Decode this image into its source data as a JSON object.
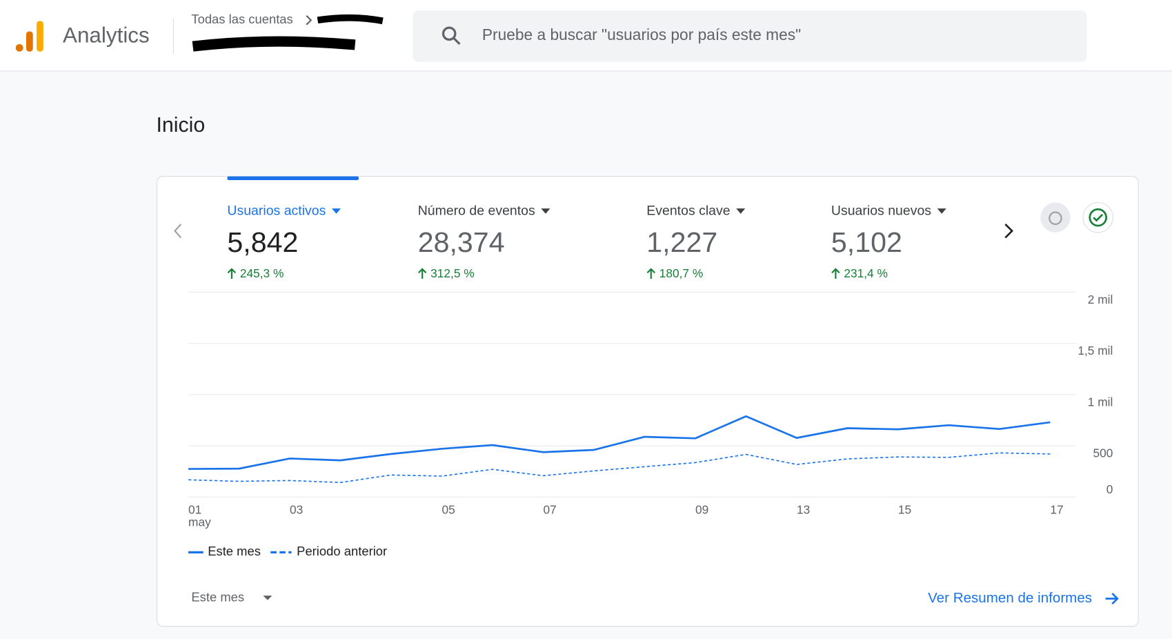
{
  "header": {
    "product": "Analytics",
    "breadcrumb": "Todas las cuentas",
    "search_placeholder": "Pruebe a buscar \"usuarios por país este mes\""
  },
  "page_title": "Inicio",
  "metrics": [
    {
      "label": "Usuarios activos",
      "value": "5,842",
      "change": "245,3 %"
    },
    {
      "label": "Número de eventos",
      "value": "28,374",
      "change": "312,5 %"
    },
    {
      "label": "Eventos clave",
      "value": "1,227",
      "change": "180,7 %"
    },
    {
      "label": "Usuarios nuevos",
      "value": "5,102",
      "change": "231,4 %"
    }
  ],
  "chart_data": {
    "type": "line",
    "categories": [
      "01",
      null,
      "03",
      null,
      null,
      "05",
      null,
      "07",
      null,
      null,
      "09",
      null,
      "13",
      null,
      "15",
      null,
      null,
      "17"
    ],
    "x_month": "may",
    "series": [
      {
        "name": "Este mes",
        "color": "#1a73e8",
        "dashed": false,
        "values": [
          274,
          277,
          376,
          358,
          420,
          471,
          507,
          438,
          460,
          588,
          573,
          788,
          577,
          672,
          661,
          701,
          664,
          730
        ]
      },
      {
        "name": "Periodo anterior",
        "color": "#1a73e8",
        "dashed": true,
        "values": [
          168,
          153,
          161,
          142,
          215,
          204,
          270,
          208,
          255,
          296,
          336,
          416,
          318,
          372,
          391,
          387,
          431,
          420
        ]
      }
    ],
    "ylim": [
      0,
      2000
    ],
    "yticks": [
      0,
      500,
      {
        "value": 1000,
        "label": "1 mil"
      },
      {
        "value": 1500,
        "label": "1,5 mil"
      },
      {
        "value": 2000,
        "label": "2 mil"
      }
    ],
    "grid": true
  },
  "footer": {
    "period": "Este mes",
    "link": "Ver Resumen de informes"
  }
}
